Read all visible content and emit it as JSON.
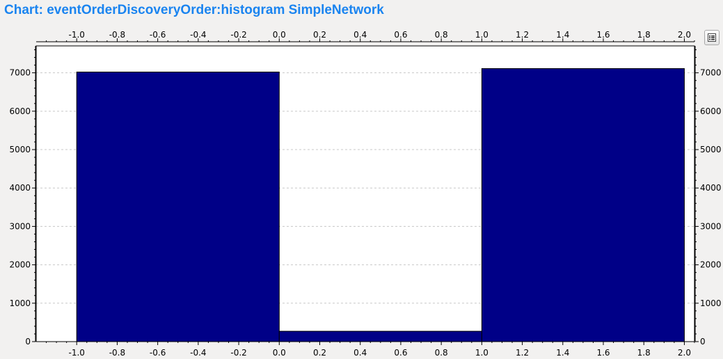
{
  "window": {
    "title": "Chart: eventOrderDiscoveryOrder:histogram SimpleNetwork"
  },
  "toolbar": {
    "legend_button_icon": "legend-list-icon"
  },
  "chart_data": {
    "type": "bar",
    "histogram": true,
    "bins": [
      {
        "x0": -1.0,
        "x1": 0.0,
        "value": 7020
      },
      {
        "x0": 0.0,
        "x1": 1.0,
        "value": 270
      },
      {
        "x0": 1.0,
        "x1": 2.0,
        "value": 7110
      }
    ],
    "xlim": [
      -1.2,
      2.05
    ],
    "ylim": [
      0,
      7700
    ],
    "x_ticks": [
      "-1.0",
      "-0.8",
      "-0.6",
      "-0.4",
      "-0.2",
      "0.0",
      "0.2",
      "0.4",
      "0.6",
      "0.8",
      "1.0",
      "1.2",
      "1.4",
      "1.6",
      "1.8",
      "2.0"
    ],
    "y_ticks": [
      "0",
      "1000",
      "2000",
      "3000",
      "4000",
      "5000",
      "6000",
      "7000"
    ],
    "bar_color": "#000087",
    "grid": "horizontal-dashed",
    "xlabel": "",
    "ylabel": ""
  }
}
